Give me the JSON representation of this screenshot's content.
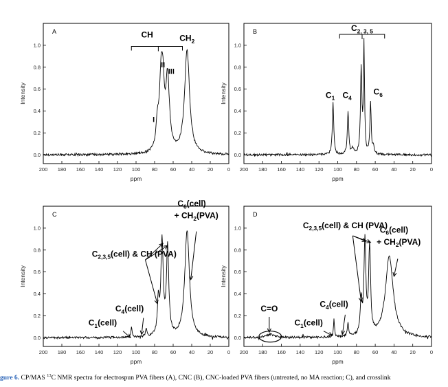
{
  "chart_data": [
    {
      "type": "line",
      "panel_label": "A",
      "xlabel": "ppm",
      "ylabel": "Intensity",
      "xlim": [
        200,
        0
      ],
      "ylim": [
        -0.08,
        1.2
      ],
      "x_ticks": [
        "200",
        "180",
        "160",
        "140",
        "120",
        "100",
        "80",
        "60",
        "40",
        "20",
        "0"
      ],
      "y_ticks": [
        "0.0",
        "0.2",
        "0.4",
        "0.6",
        "0.8",
        "1.0"
      ],
      "peaks": [
        {
          "x": 77,
          "y": 0.21,
          "w": 1.8
        },
        {
          "x": 73,
          "y": 0.62,
          "w": 2.2
        },
        {
          "x": 71,
          "y": 0.4,
          "w": 1.8
        },
        {
          "x": 66,
          "y": 0.66,
          "w": 2.4
        },
        {
          "x": 45,
          "y": 0.95,
          "w": 3.2
        }
      ],
      "annotations": [
        {
          "text": "CH",
          "x": 88,
          "y": 1.07,
          "size": 12
        },
        {
          "text": "II",
          "x": 71,
          "y": 0.8,
          "size": 11
        },
        {
          "text": "III",
          "x": 62,
          "y": 0.74,
          "size": 11
        },
        {
          "text": "I",
          "x": 81,
          "y": 0.3,
          "size": 11
        },
        {
          "text": "CH",
          "sub": "2",
          "x": 45,
          "y": 1.04,
          "size": 12
        }
      ],
      "brackets": [
        {
          "x1": 105,
          "x2": 50,
          "y": 0.99,
          "tip": 76
        }
      ]
    },
    {
      "type": "line",
      "panel_label": "B",
      "xlabel": "ppm",
      "ylabel": "Intensity",
      "xlim": [
        200,
        0
      ],
      "ylim": [
        -0.08,
        1.2
      ],
      "x_ticks": [
        "200",
        "180",
        "160",
        "140",
        "120",
        "100",
        "80",
        "60",
        "40",
        "20",
        "0"
      ],
      "y_ticks": [
        "0.0",
        "0.2",
        "0.4",
        "0.6",
        "0.8",
        "1.0"
      ],
      "peaks": [
        {
          "x": 105,
          "y": 0.47,
          "w": 0.9
        },
        {
          "x": 89,
          "y": 0.39,
          "w": 0.9
        },
        {
          "x": 84,
          "y": 0.05,
          "w": 1.2
        },
        {
          "x": 75,
          "y": 0.77,
          "w": 0.9
        },
        {
          "x": 72,
          "y": 0.99,
          "w": 0.7
        },
        {
          "x": 65,
          "y": 0.47,
          "w": 0.8
        },
        {
          "x": 62,
          "y": 0.06,
          "w": 1.2
        }
      ],
      "annotations": [
        {
          "text": "C",
          "sub": "2, 3, 5",
          "x": 74,
          "y": 1.13,
          "size": 12
        },
        {
          "text": "C",
          "sub": "1",
          "x": 108,
          "y": 0.52,
          "size": 12
        },
        {
          "text": "C",
          "sub": "4",
          "x": 90,
          "y": 0.52,
          "size": 12
        },
        {
          "text": "C",
          "sub": "6",
          "x": 57,
          "y": 0.55,
          "size": 12
        }
      ],
      "brackets": [
        {
          "x1": 98,
          "x2": 50,
          "y": 1.1,
          "tip": 74
        }
      ]
    },
    {
      "type": "line",
      "panel_label": "C",
      "xlabel": "ppm",
      "ylabel": "Intensity",
      "xlim": [
        200,
        0
      ],
      "ylim": [
        -0.08,
        1.2
      ],
      "x_ticks": [
        "200",
        "180",
        "160",
        "140",
        "120",
        "100",
        "80",
        "60",
        "40",
        "20",
        "0"
      ],
      "y_ticks": [
        "0.0",
        "0.2",
        "0.4",
        "0.6",
        "0.8",
        "1.0"
      ],
      "peaks": [
        {
          "x": 105,
          "y": 0.09,
          "w": 0.8
        },
        {
          "x": 89,
          "y": 0.08,
          "w": 0.8
        },
        {
          "x": 76,
          "y": 0.3,
          "w": 1.2
        },
        {
          "x": 72,
          "y": 0.85,
          "w": 1.5
        },
        {
          "x": 66,
          "y": 0.8,
          "w": 1.5
        },
        {
          "x": 45,
          "y": 0.98,
          "w": 3.0
        }
      ],
      "annotations": [
        {
          "text": "C",
          "sub": "2,3,5",
          "tail": "(cell) & CH (PVA)",
          "x": 102,
          "y": 0.74,
          "size": 12
        },
        {
          "text": "C",
          "sub": "6",
          "tail": "(cell)",
          "x": 40,
          "y": 1.2,
          "size": 12
        },
        {
          "text": "+ CH",
          "sub": "2",
          "tail": "(PVA)",
          "x": 35,
          "y": 1.09,
          "size": 12
        },
        {
          "text": "C",
          "sub": "4",
          "tail": "(cell)",
          "x": 107,
          "y": 0.24,
          "size": 12
        },
        {
          "text": "C",
          "sub": "1",
          "tail": "(cell)",
          "x": 136,
          "y": 0.11,
          "size": 12
        }
      ],
      "arrows": [
        {
          "x1": 90,
          "y1": 0.71,
          "x2": 77,
          "y2": 0.31
        },
        {
          "x1": 90,
          "y1": 0.71,
          "x2": 71,
          "y2": 0.86
        },
        {
          "x1": 90,
          "y1": 0.71,
          "x2": 66,
          "y2": 0.84
        },
        {
          "x1": 35,
          "y1": 0.97,
          "x2": 41,
          "y2": 0.53
        },
        {
          "x1": 92,
          "y1": 0.18,
          "x2": 94,
          "y2": 0.03
        },
        {
          "x1": 114,
          "y1": 0.06,
          "x2": 106,
          "y2": 0.0
        }
      ]
    },
    {
      "type": "line",
      "panel_label": "D",
      "xlabel": "ppm",
      "ylabel": "Intensity",
      "xlim": [
        200,
        0
      ],
      "ylim": [
        -0.08,
        1.2
      ],
      "x_ticks": [
        "200",
        "180",
        "160",
        "140",
        "120",
        "100",
        "80",
        "60",
        "40",
        "20",
        "0"
      ],
      "y_ticks": [
        "0.0",
        "0.2",
        "0.4",
        "0.6",
        "0.8",
        "1.0"
      ],
      "peaks": [
        {
          "x": 172,
          "y": 0.03,
          "w": 5.0
        },
        {
          "x": 104,
          "y": 0.17,
          "w": 0.7
        },
        {
          "x": 89,
          "y": 0.13,
          "w": 0.8
        },
        {
          "x": 75,
          "y": 0.3,
          "w": 1.2
        },
        {
          "x": 71,
          "y": 0.85,
          "w": 1.2
        },
        {
          "x": 66,
          "y": 0.8,
          "w": 1.2
        },
        {
          "x": 45,
          "y": 0.74,
          "w": 5.0
        }
      ],
      "annotations": [
        {
          "text": "C",
          "sub": "2,3,5",
          "tail": "(cell) & CH (PVA)",
          "x": 92,
          "y": 1.0,
          "size": 12
        },
        {
          "text": "C",
          "sub": "6",
          "tail": "(cell)",
          "x": 40,
          "y": 0.96,
          "size": 12
        },
        {
          "text": "+ CH",
          "sub": "2",
          "tail": "(PVA)",
          "x": 35,
          "y": 0.85,
          "size": 12
        },
        {
          "text": "C",
          "sub": "4",
          "tail": "(cell)",
          "x": 104,
          "y": 0.28,
          "size": 12
        },
        {
          "text": "C",
          "sub": "1",
          "tail": "(cell)",
          "x": 131,
          "y": 0.11,
          "size": 12
        },
        {
          "text": "C=O",
          "x": 173,
          "y": 0.24,
          "size": 12
        }
      ],
      "arrows": [
        {
          "x1": 84,
          "y1": 0.93,
          "x2": 75,
          "y2": 0.33
        },
        {
          "x1": 84,
          "y1": 0.93,
          "x2": 70,
          "y2": 0.88
        },
        {
          "x1": 84,
          "y1": 0.93,
          "x2": 65,
          "y2": 0.87
        },
        {
          "x1": 36,
          "y1": 0.72,
          "x2": 40,
          "y2": 0.56
        },
        {
          "x1": 92,
          "y1": 0.21,
          "x2": 95,
          "y2": 0.03
        },
        {
          "x1": 115,
          "y1": 0.06,
          "x2": 106,
          "y2": 0.02
        },
        {
          "x1": 173,
          "y1": 0.19,
          "x2": 173,
          "y2": 0.05
        }
      ],
      "ellipses": [
        {
          "cx": 172,
          "cy": 0.01,
          "rx": 12,
          "ry": 0.05
        }
      ]
    }
  ],
  "caption": {
    "label": "gure 6.",
    "text_before": " CP/MAS ",
    "isotope_mass": "13",
    "text_after": "C NMR spectra for electrospun PVA fibers (A), CNC (B), CNC-loaded PVA fibers (untreated, no MA reaction; C), and crosslink"
  }
}
